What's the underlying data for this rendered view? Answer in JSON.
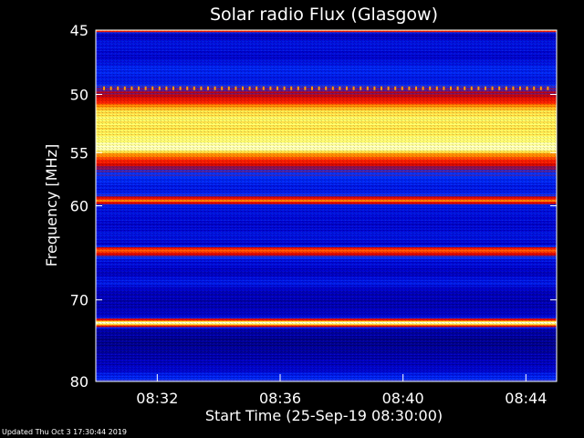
{
  "chart_data": {
    "type": "heatmap",
    "title": "Solar radio Flux (Glasgow)",
    "xlabel": "Start Time (25-Sep-19 08:30:00)",
    "ylabel": "Frequency [MHz]",
    "y_ticks": [
      45,
      50,
      55,
      60,
      70,
      80
    ],
    "y_scale": "log",
    "ylim": [
      45,
      80
    ],
    "x_ticks": [
      "08:32",
      "08:36",
      "08:40",
      "08:44"
    ],
    "xlim": [
      "08:30:00",
      "08:45:00"
    ],
    "intensity_profile": [
      {
        "freq": 45.0,
        "level": 0.7
      },
      {
        "freq": 45.3,
        "level": 0.1
      },
      {
        "freq": 46.0,
        "level": 0.2
      },
      {
        "freq": 47.0,
        "level": 0.15
      },
      {
        "freq": 48.0,
        "level": 0.25
      },
      {
        "freq": 49.0,
        "level": 0.2
      },
      {
        "freq": 49.5,
        "level": 0.35
      },
      {
        "freq": 50.0,
        "level": 0.4
      },
      {
        "freq": 50.6,
        "level": 0.55
      },
      {
        "freq": 51.2,
        "level": 0.78
      },
      {
        "freq": 52.0,
        "level": 0.85
      },
      {
        "freq": 53.0,
        "level": 0.82
      },
      {
        "freq": 54.0,
        "level": 0.88
      },
      {
        "freq": 54.6,
        "level": 0.95
      },
      {
        "freq": 55.2,
        "level": 0.7
      },
      {
        "freq": 55.8,
        "level": 0.55
      },
      {
        "freq": 56.5,
        "level": 0.35
      },
      {
        "freq": 57.5,
        "level": 0.25
      },
      {
        "freq": 58.5,
        "level": 0.2
      },
      {
        "freq": 59.0,
        "level": 0.3
      },
      {
        "freq": 59.5,
        "level": 0.7
      },
      {
        "freq": 60.0,
        "level": 0.2
      },
      {
        "freq": 61.0,
        "level": 0.18
      },
      {
        "freq": 62.0,
        "level": 0.15
      },
      {
        "freq": 63.0,
        "level": 0.2
      },
      {
        "freq": 64.0,
        "level": 0.15
      },
      {
        "freq": 64.5,
        "level": 0.68
      },
      {
        "freq": 65.5,
        "level": 0.2
      },
      {
        "freq": 67.0,
        "level": 0.12
      },
      {
        "freq": 68.0,
        "level": 0.22
      },
      {
        "freq": 69.0,
        "level": 0.12
      },
      {
        "freq": 70.5,
        "level": 0.1
      },
      {
        "freq": 72.0,
        "level": 0.15
      },
      {
        "freq": 72.7,
        "level": 1.0
      },
      {
        "freq": 73.4,
        "level": 0.1
      },
      {
        "freq": 75.0,
        "level": 0.05
      },
      {
        "freq": 77.0,
        "level": 0.1
      },
      {
        "freq": 78.5,
        "level": 0.15
      },
      {
        "freq": 80.0,
        "level": 0.3
      }
    ],
    "colormap": [
      "#000066",
      "#0000cc",
      "#0033ff",
      "#cc0000",
      "#ff2200",
      "#ff9900",
      "#ffff66",
      "#ffffff"
    ],
    "grid": false,
    "legend": "none"
  },
  "footer": {
    "updated": "Updated Thu Oct  3 17:30:44 2019"
  }
}
